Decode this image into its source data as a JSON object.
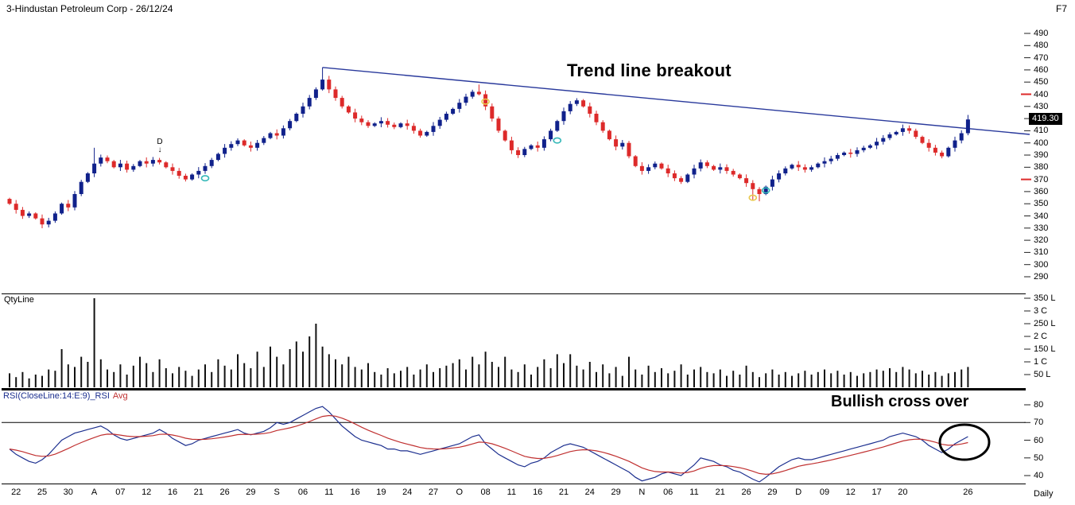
{
  "window": {
    "title": "3-Hindustan Petroleum Corp - 26/12/24",
    "fkey": "F7",
    "timeframe": "Daily"
  },
  "panels": {
    "volume_label": "QtyLine",
    "rsi_label": "RSI(CloseLine:14:E:9)_RSI",
    "rsi_avg_label": "Avg"
  },
  "annotations": {
    "trend": "Trend line breakout",
    "bullish": "Bullish cross over",
    "d_marker": "D",
    "d_arrow": "↓"
  },
  "price_tag": "419.30",
  "colors": {
    "up": "#10218b",
    "down": "#dd2a2a",
    "volume": "#111111",
    "rsi": "#1c2f8f",
    "rsi_avg": "#c03030",
    "trendline": "#2a3a9c",
    "grid": "#000000",
    "tick": "#222222",
    "tag_bg": "#000000",
    "tag_fg": "#ffffff"
  },
  "chart_data": [
    {
      "type": "candlestick",
      "title": "3-Hindustan Petroleum Corp - 26/12/24",
      "ylabel": "Price",
      "ylim": [
        290,
        490
      ],
      "yticks": [
        490,
        480,
        470,
        460,
        450,
        440,
        430,
        420,
        410,
        400,
        390,
        380,
        370,
        360,
        350,
        340,
        330,
        320,
        310,
        300,
        290
      ],
      "alert_ticks": [
        440,
        370
      ],
      "last_price": 419.3,
      "open_first": 354,
      "closes": [
        350,
        345,
        340,
        342,
        338,
        333,
        336,
        342,
        350,
        347,
        358,
        368,
        375,
        383,
        388,
        385,
        380,
        383,
        378,
        381,
        385,
        383,
        386,
        384,
        380,
        377,
        373,
        370,
        374,
        377,
        381,
        386,
        391,
        396,
        399,
        402,
        398,
        396,
        400,
        404,
        408,
        406,
        412,
        418,
        424,
        430,
        437,
        444,
        452,
        444,
        437,
        430,
        425,
        420,
        417,
        414,
        416,
        418,
        415,
        413,
        416,
        414,
        410,
        406,
        409,
        414,
        419,
        424,
        428,
        433,
        438,
        442,
        440,
        430,
        420,
        410,
        402,
        394,
        390,
        395,
        398,
        396,
        403,
        410,
        418,
        426,
        432,
        435,
        430,
        424,
        417,
        410,
        403,
        397,
        400,
        389,
        381,
        377,
        380,
        383,
        379,
        375,
        371,
        368,
        374,
        379,
        384,
        381,
        378,
        380,
        377,
        374,
        371,
        367,
        362,
        358,
        364,
        370,
        375,
        379,
        382,
        380,
        378,
        380,
        383,
        385,
        387,
        390,
        392,
        391,
        394,
        396,
        398,
        401,
        404,
        407,
        409,
        412,
        410,
        405,
        400,
        396,
        392,
        389,
        396,
        402,
        408,
        419.3
      ],
      "overrides": {
        "13": {
          "high": 396
        },
        "48": {
          "high": 462
        },
        "72": {
          "high": 448
        },
        "114": {
          "low": 353
        },
        "115": {
          "low": 352
        },
        "147": {
          "high": 423
        }
      },
      "trendline": {
        "from_index": 48,
        "from_price": 462,
        "to_x": 1295,
        "to_price": 407
      },
      "markers": [
        {
          "i": 30,
          "price": 371,
          "color": "#35b8b8"
        },
        {
          "i": 73,
          "price": 434,
          "color": "#e8c84e"
        },
        {
          "i": 84,
          "price": 402,
          "color": "#35b8b8"
        },
        {
          "i": 114,
          "price": 355,
          "color": "#e8c84e"
        },
        {
          "i": 116,
          "price": 361,
          "color": "#35b8b8"
        }
      ],
      "x_labels": [
        {
          "i": 1,
          "t": "22"
        },
        {
          "i": 5,
          "t": "25"
        },
        {
          "i": 9,
          "t": "30"
        },
        {
          "i": 13,
          "t": "A"
        },
        {
          "i": 17,
          "t": "07"
        },
        {
          "i": 21,
          "t": "12"
        },
        {
          "i": 25,
          "t": "16"
        },
        {
          "i": 29,
          "t": "21"
        },
        {
          "i": 33,
          "t": "26"
        },
        {
          "i": 37,
          "t": "29"
        },
        {
          "i": 41,
          "t": "S"
        },
        {
          "i": 45,
          "t": "06"
        },
        {
          "i": 49,
          "t": "11"
        },
        {
          "i": 53,
          "t": "16"
        },
        {
          "i": 57,
          "t": "19"
        },
        {
          "i": 61,
          "t": "24"
        },
        {
          "i": 65,
          "t": "27"
        },
        {
          "i": 69,
          "t": "O"
        },
        {
          "i": 73,
          "t": "08"
        },
        {
          "i": 77,
          "t": "11"
        },
        {
          "i": 81,
          "t": "16"
        },
        {
          "i": 85,
          "t": "21"
        },
        {
          "i": 89,
          "t": "24"
        },
        {
          "i": 93,
          "t": "29"
        },
        {
          "i": 97,
          "t": "N"
        },
        {
          "i": 101,
          "t": "06"
        },
        {
          "i": 105,
          "t": "11"
        },
        {
          "i": 109,
          "t": "21"
        },
        {
          "i": 113,
          "t": "26"
        },
        {
          "i": 117,
          "t": "29"
        },
        {
          "i": 121,
          "t": "D"
        },
        {
          "i": 125,
          "t": "09"
        },
        {
          "i": 129,
          "t": "12"
        },
        {
          "i": 133,
          "t": "17"
        },
        {
          "i": 137,
          "t": "20"
        },
        {
          "i": 147,
          "t": "26"
        }
      ]
    },
    {
      "type": "bar",
      "name": "QtyLine",
      "ylim": [
        0,
        370
      ],
      "ticks": [
        {
          "v": 350,
          "t": "350 L"
        },
        {
          "v": 300,
          "t": "3 C"
        },
        {
          "v": 250,
          "t": "250 L"
        },
        {
          "v": 200,
          "t": "2 C"
        },
        {
          "v": 150,
          "t": "150 L"
        },
        {
          "v": 100,
          "t": "1 C"
        },
        {
          "v": 50,
          "t": "50 L"
        }
      ],
      "values": [
        55,
        40,
        60,
        35,
        50,
        45,
        70,
        65,
        150,
        90,
        80,
        120,
        100,
        350,
        110,
        70,
        60,
        90,
        50,
        85,
        120,
        95,
        60,
        110,
        75,
        55,
        80,
        65,
        45,
        70,
        90,
        60,
        110,
        85,
        70,
        130,
        95,
        75,
        140,
        80,
        160,
        120,
        90,
        150,
        180,
        140,
        200,
        250,
        160,
        130,
        110,
        90,
        120,
        80,
        70,
        95,
        60,
        50,
        75,
        55,
        65,
        80,
        50,
        70,
        90,
        60,
        75,
        85,
        95,
        110,
        70,
        120,
        90,
        140,
        100,
        80,
        120,
        70,
        60,
        90,
        50,
        80,
        110,
        75,
        130,
        95,
        130,
        85,
        70,
        100,
        60,
        90,
        55,
        80,
        45,
        120,
        70,
        50,
        85,
        60,
        75,
        55,
        65,
        90,
        50,
        70,
        80,
        60,
        55,
        70,
        45,
        65,
        50,
        85,
        60,
        40,
        55,
        70,
        50,
        60,
        45,
        55,
        65,
        50,
        60,
        70,
        55,
        65,
        50,
        60,
        45,
        55,
        60,
        70,
        65,
        75,
        60,
        80,
        70,
        55,
        65,
        50,
        60,
        45,
        55,
        60,
        70,
        80
      ]
    },
    {
      "type": "line",
      "name": "RSI(CloseLine:14:E:9)_RSI",
      "ylim": [
        33,
        85
      ],
      "yticks": [
        80,
        70,
        60,
        50,
        40
      ],
      "overbought_line": 70,
      "series": [
        {
          "name": "RSI",
          "values": [
            55,
            52,
            50,
            48,
            47,
            49,
            52,
            56,
            60,
            62,
            64,
            65,
            66,
            67,
            68,
            66,
            63,
            61,
            60,
            61,
            62,
            63,
            64,
            66,
            64,
            61,
            59,
            57,
            58,
            60,
            61,
            62,
            63,
            64,
            65,
            66,
            64,
            63,
            64,
            65,
            67,
            70,
            69,
            70,
            72,
            74,
            76,
            78,
            79,
            76,
            72,
            68,
            65,
            62,
            60,
            59,
            58,
            57,
            55,
            55,
            54,
            54,
            53,
            52,
            53,
            54,
            55,
            56,
            57,
            58,
            60,
            62,
            63,
            58,
            55,
            52,
            50,
            48,
            46,
            45,
            47,
            48,
            50,
            53,
            55,
            57,
            58,
            57,
            56,
            54,
            52,
            50,
            48,
            46,
            44,
            42,
            39,
            37,
            38,
            39,
            41,
            42,
            41,
            40,
            43,
            46,
            50,
            49,
            48,
            46,
            45,
            43,
            42,
            40,
            38,
            36,
            39,
            42,
            45,
            47,
            49,
            50,
            49,
            49,
            50,
            51,
            52,
            53,
            54,
            55,
            56,
            57,
            58,
            59,
            60,
            62,
            63,
            64,
            63,
            62,
            60,
            57,
            55,
            53,
            55,
            58,
            60,
            62
          ]
        },
        {
          "name": "Avg",
          "derived": "EMA9 of RSI"
        }
      ]
    }
  ]
}
